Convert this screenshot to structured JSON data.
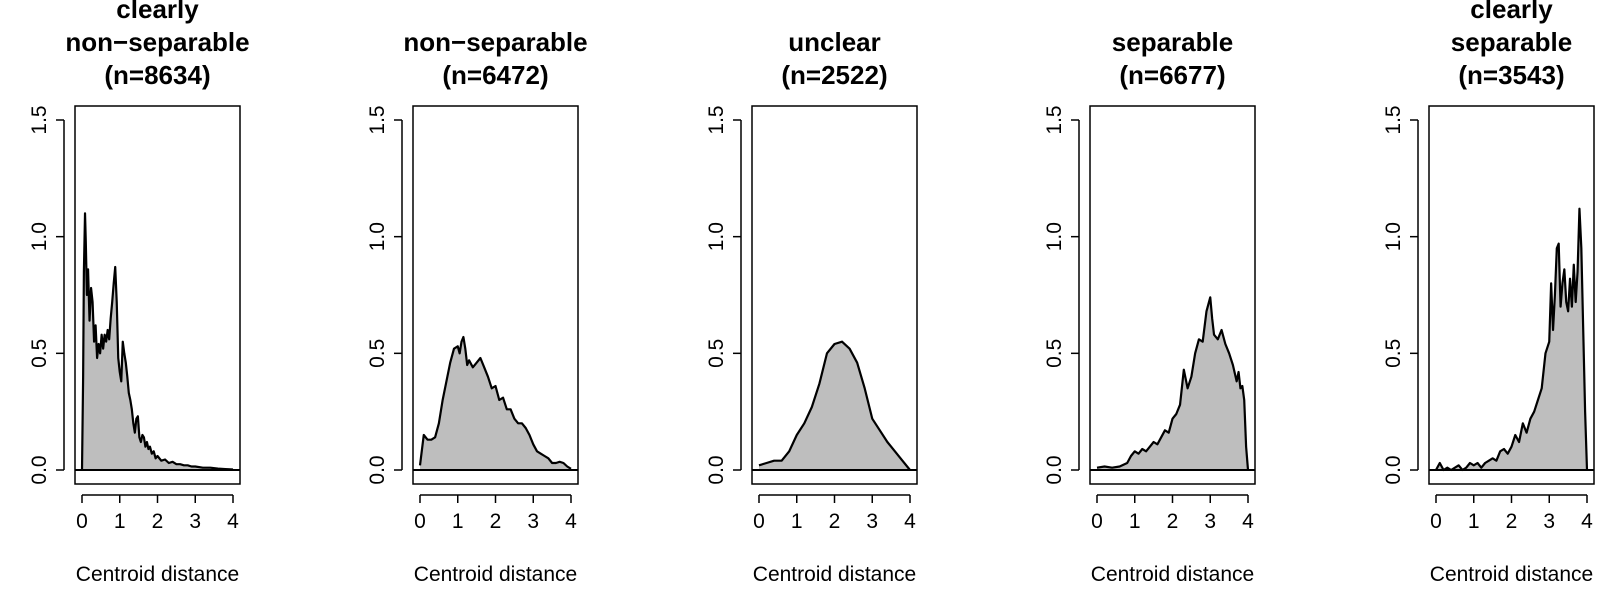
{
  "chart_data": [
    {
      "type": "area",
      "title": [
        "clearly",
        "non−separable",
        "(n=8634)"
      ],
      "xlabel": "Centroid distance",
      "ylabel": "",
      "xlim": [
        0,
        4
      ],
      "ylim": [
        0,
        1.5
      ],
      "xticks": [
        "0",
        "1",
        "2",
        "3",
        "4"
      ],
      "yticks": [
        "0.0",
        "0.5",
        "1.0",
        "1.5"
      ],
      "x": [
        0,
        0.03,
        0.05,
        0.08,
        0.1,
        0.13,
        0.16,
        0.2,
        0.24,
        0.28,
        0.32,
        0.36,
        0.4,
        0.44,
        0.48,
        0.52,
        0.56,
        0.6,
        0.64,
        0.68,
        0.72,
        0.76,
        0.8,
        0.84,
        0.88,
        0.92,
        0.96,
        1.0,
        1.04,
        1.08,
        1.12,
        1.16,
        1.2,
        1.24,
        1.28,
        1.32,
        1.36,
        1.4,
        1.44,
        1.48,
        1.52,
        1.56,
        1.6,
        1.64,
        1.68,
        1.72,
        1.76,
        1.8,
        1.85,
        1.9,
        1.95,
        2.0,
        2.1,
        2.2,
        2.3,
        2.4,
        2.5,
        2.6,
        2.7,
        2.8,
        2.9,
        3.0,
        3.2,
        3.4,
        3.6,
        3.8,
        4.0
      ],
      "y": [
        0,
        0.4,
        0.85,
        1.1,
        0.98,
        0.75,
        0.86,
        0.64,
        0.78,
        0.72,
        0.55,
        0.62,
        0.48,
        0.54,
        0.5,
        0.58,
        0.52,
        0.58,
        0.55,
        0.6,
        0.56,
        0.65,
        0.72,
        0.8,
        0.87,
        0.72,
        0.48,
        0.42,
        0.38,
        0.55,
        0.5,
        0.46,
        0.4,
        0.33,
        0.3,
        0.26,
        0.2,
        0.16,
        0.22,
        0.23,
        0.14,
        0.12,
        0.15,
        0.14,
        0.1,
        0.12,
        0.09,
        0.1,
        0.07,
        0.08,
        0.05,
        0.06,
        0.04,
        0.045,
        0.03,
        0.035,
        0.025,
        0.025,
        0.02,
        0.02,
        0.015,
        0.015,
        0.01,
        0.01,
        0.006,
        0.004,
        0.002
      ]
    },
    {
      "type": "area",
      "title": [
        "non−separable",
        "(n=6472)"
      ],
      "xlabel": "Centroid distance",
      "ylabel": "",
      "xlim": [
        0,
        4
      ],
      "ylim": [
        0,
        1.5
      ],
      "xticks": [
        "0",
        "1",
        "2",
        "3",
        "4"
      ],
      "yticks": [
        "0.0",
        "0.5",
        "1.0",
        "1.5"
      ],
      "x": [
        0,
        0.1,
        0.2,
        0.3,
        0.4,
        0.5,
        0.6,
        0.7,
        0.8,
        0.9,
        1.0,
        1.05,
        1.1,
        1.15,
        1.2,
        1.25,
        1.3,
        1.4,
        1.5,
        1.6,
        1.7,
        1.8,
        1.9,
        2.0,
        2.1,
        2.2,
        2.3,
        2.4,
        2.5,
        2.6,
        2.7,
        2.8,
        2.9,
        3.0,
        3.1,
        3.2,
        3.3,
        3.4,
        3.5,
        3.6,
        3.7,
        3.8,
        3.9,
        4.0
      ],
      "y": [
        0.02,
        0.15,
        0.13,
        0.13,
        0.14,
        0.2,
        0.3,
        0.38,
        0.46,
        0.52,
        0.53,
        0.5,
        0.55,
        0.57,
        0.52,
        0.45,
        0.47,
        0.44,
        0.46,
        0.48,
        0.44,
        0.4,
        0.35,
        0.36,
        0.3,
        0.31,
        0.26,
        0.26,
        0.22,
        0.2,
        0.2,
        0.18,
        0.15,
        0.11,
        0.08,
        0.07,
        0.06,
        0.05,
        0.03,
        0.03,
        0.035,
        0.03,
        0.015,
        0.005
      ]
    },
    {
      "type": "area",
      "title": [
        "unclear",
        "(n=2522)"
      ],
      "xlabel": "Centroid distance",
      "ylabel": "",
      "xlim": [
        0,
        4
      ],
      "ylim": [
        0,
        1.5
      ],
      "xticks": [
        "0",
        "1",
        "2",
        "3",
        "4"
      ],
      "yticks": [
        "0.0",
        "0.5",
        "1.0",
        "1.5"
      ],
      "x": [
        0,
        0.2,
        0.4,
        0.6,
        0.8,
        1.0,
        1.2,
        1.4,
        1.6,
        1.8,
        2.0,
        2.2,
        2.4,
        2.6,
        2.8,
        3.0,
        3.2,
        3.4,
        3.6,
        3.8,
        4.0
      ],
      "y": [
        0.02,
        0.03,
        0.04,
        0.04,
        0.08,
        0.15,
        0.2,
        0.27,
        0.37,
        0.5,
        0.54,
        0.55,
        0.52,
        0.46,
        0.35,
        0.22,
        0.17,
        0.12,
        0.08,
        0.04,
        0.0
      ]
    },
    {
      "type": "area",
      "title": [
        "separable",
        "(n=6677)"
      ],
      "xlabel": "Centroid distance",
      "ylabel": "",
      "xlim": [
        0,
        4
      ],
      "ylim": [
        0,
        1.5
      ],
      "xticks": [
        "0",
        "1",
        "2",
        "3",
        "4"
      ],
      "yticks": [
        "0.0",
        "0.5",
        "1.0",
        "1.5"
      ],
      "x": [
        0,
        0.2,
        0.4,
        0.6,
        0.8,
        0.9,
        1.0,
        1.1,
        1.2,
        1.3,
        1.4,
        1.5,
        1.6,
        1.7,
        1.8,
        1.9,
        2.0,
        2.1,
        2.2,
        2.3,
        2.4,
        2.5,
        2.6,
        2.7,
        2.8,
        2.9,
        3.0,
        3.05,
        3.1,
        3.2,
        3.3,
        3.4,
        3.5,
        3.6,
        3.7,
        3.75,
        3.8,
        3.85,
        3.9,
        3.95,
        4.0
      ],
      "y": [
        0.01,
        0.015,
        0.01,
        0.015,
        0.03,
        0.06,
        0.08,
        0.07,
        0.09,
        0.08,
        0.1,
        0.12,
        0.11,
        0.14,
        0.17,
        0.16,
        0.22,
        0.24,
        0.28,
        0.43,
        0.35,
        0.4,
        0.5,
        0.56,
        0.55,
        0.68,
        0.74,
        0.65,
        0.58,
        0.56,
        0.6,
        0.54,
        0.5,
        0.45,
        0.38,
        0.42,
        0.35,
        0.36,
        0.3,
        0.1,
        0.0
      ]
    },
    {
      "type": "area",
      "title": [
        "clearly",
        "separable",
        "(n=3543)"
      ],
      "xlabel": "Centroid distance",
      "ylabel": "",
      "xlim": [
        0,
        4
      ],
      "ylim": [
        0,
        1.5
      ],
      "xticks": [
        "0",
        "1",
        "2",
        "3",
        "4"
      ],
      "yticks": [
        "0.0",
        "0.5",
        "1.0",
        "1.5"
      ],
      "x": [
        0,
        0.1,
        0.2,
        0.3,
        0.4,
        0.5,
        0.6,
        0.7,
        0.8,
        0.9,
        1.0,
        1.1,
        1.2,
        1.3,
        1.4,
        1.5,
        1.6,
        1.7,
        1.8,
        1.9,
        2.0,
        2.1,
        2.2,
        2.3,
        2.4,
        2.5,
        2.6,
        2.7,
        2.8,
        2.9,
        3.0,
        3.05,
        3.1,
        3.15,
        3.2,
        3.25,
        3.3,
        3.35,
        3.4,
        3.45,
        3.5,
        3.55,
        3.6,
        3.65,
        3.7,
        3.75,
        3.8,
        3.85,
        3.9,
        3.95,
        4.0
      ],
      "y": [
        0.0,
        0.03,
        0.0,
        0.01,
        0.0,
        0.01,
        0.02,
        0.0,
        0.01,
        0.03,
        0.02,
        0.03,
        0.01,
        0.03,
        0.04,
        0.05,
        0.04,
        0.08,
        0.09,
        0.07,
        0.1,
        0.15,
        0.12,
        0.2,
        0.16,
        0.22,
        0.25,
        0.3,
        0.35,
        0.5,
        0.55,
        0.8,
        0.6,
        0.75,
        0.95,
        0.97,
        0.7,
        0.8,
        0.86,
        0.72,
        0.68,
        0.82,
        0.7,
        0.88,
        0.72,
        0.85,
        1.12,
        0.95,
        0.6,
        0.25,
        0.0
      ]
    }
  ]
}
